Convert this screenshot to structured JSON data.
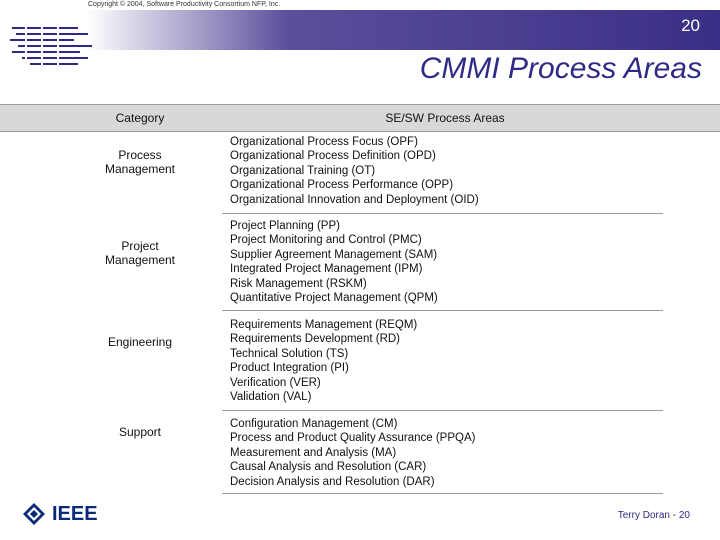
{
  "copyright": "Copyright © 2004, Software Productivity Consortium NFP, Inc.",
  "slide_number": "20",
  "title": "CMMI Process Areas",
  "table": {
    "header_category": "Category",
    "header_areas": "SE/SW Process Areas",
    "rows": [
      {
        "category": [
          "Process",
          "Management"
        ],
        "areas": [
          "Organizational Process Focus  (OPF)",
          "Organizational Process Definition  (OPD)",
          "Organizational Training  (OT)",
          "Organizational Process Performance  (OPP)",
          "Organizational Innovation and Deployment  (OID)"
        ]
      },
      {
        "category": [
          "Project",
          "Management"
        ],
        "areas": [
          "Project Planning  (PP)",
          "Project Monitoring and Control  (PMC)",
          "Supplier Agreement Management  (SAM)",
          "Integrated Project Management   (IPM)",
          "Risk Management  (RSKM)",
          "Quantitative Project Management  (QPM)"
        ]
      },
      {
        "category": [
          "Engineering"
        ],
        "areas": [
          "Requirements Management  (REQM)",
          "Requirements Development  (RD)",
          "Technical Solution  (TS)",
          "Product Integration  (PI)",
          "Verification  (VER)",
          "Validation  (VAL)"
        ]
      },
      {
        "category": [
          "Support"
        ],
        "areas": [
          "Configuration Management  (CM)",
          "Process and Product Quality Assurance  (PPQA)",
          "Measurement and Analysis  (MA)",
          "Causal Analysis and Resolution  (CAR)",
          "Decision Analysis and Resolution  (DAR)"
        ]
      }
    ]
  },
  "footer": {
    "logo_text": "IEEE",
    "credit": "Terry Doran - 20"
  },
  "colors": {
    "banner": "#3a2f86",
    "title": "#2e2a86",
    "header_row": "#d8d8d8"
  }
}
